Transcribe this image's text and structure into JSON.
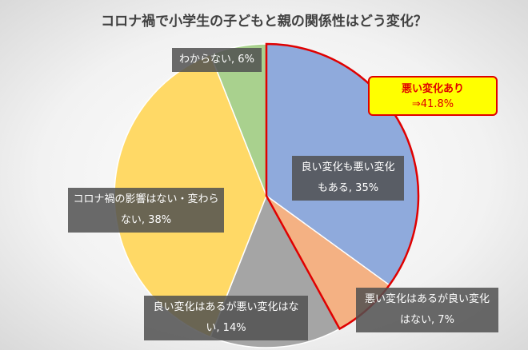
{
  "chart_data": {
    "type": "pie",
    "title": "コロナ禍で小学生の子どもと親の関係性はどう変化？",
    "values": [
      35,
      7,
      14,
      38,
      6
    ],
    "value_labels": [
      "良い変化も悪い変化もある, 35%",
      "悪い変化はあるが良い変化はない, 7%",
      "良い変化はあるが悪い変化はない, 14%",
      "コロナ禍の影響はない・変わらない, 38%",
      "わからない, 6%"
    ],
    "colors": [
      "#8faadc",
      "#f4b183",
      "#a5a5a5",
      "#ffd966",
      "#a9d18e"
    ],
    "annotation": [
      "悪い変化あり",
      "⇒41.8%"
    ]
  }
}
